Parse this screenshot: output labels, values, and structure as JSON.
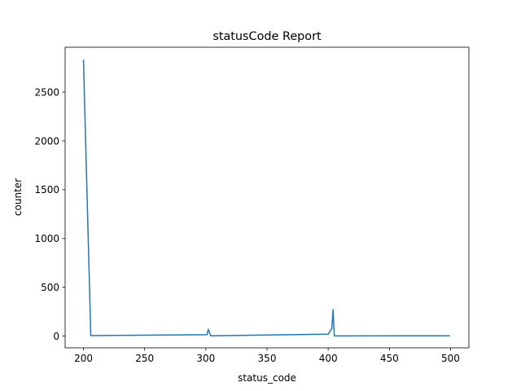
{
  "chart_data": {
    "type": "line",
    "title": "statusCode Report",
    "xlabel": "status_code",
    "ylabel": "counter",
    "xlim": [
      185,
      515
    ],
    "ylim": [
      -120,
      2960
    ],
    "xticks": [
      200,
      250,
      300,
      350,
      400,
      450,
      500
    ],
    "yticks": [
      0,
      500,
      1000,
      1500,
      2000,
      2500
    ],
    "grid": false,
    "series": [
      {
        "color": "#1f77b4",
        "x": [
          200,
          206,
          301,
          302,
          304,
          400,
          403,
          404,
          405,
          499
        ],
        "y": [
          2825,
          5,
          15,
          70,
          3,
          20,
          80,
          270,
          2,
          3
        ]
      }
    ]
  }
}
